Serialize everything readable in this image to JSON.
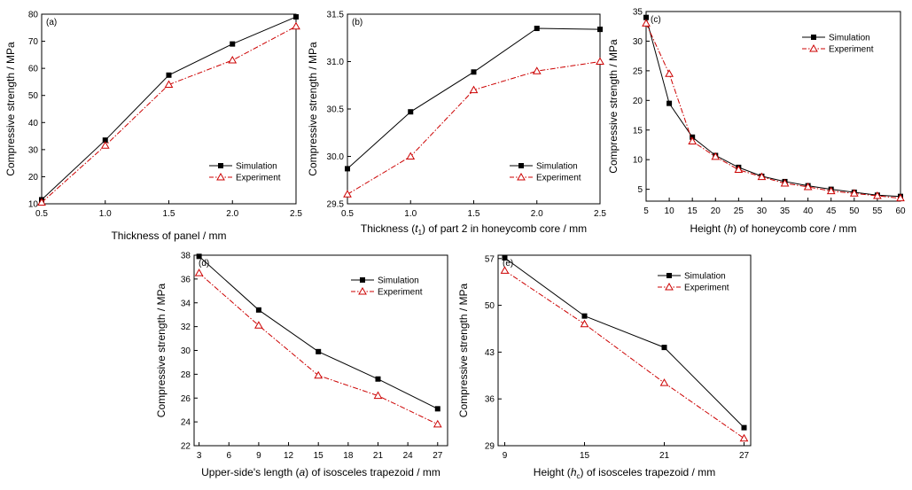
{
  "chart_data": [
    {
      "type": "line",
      "panel_label": "(a)",
      "xlabel": "Thickness of panel / mm",
      "ylabel": "Compressive strength / MPa",
      "xlim": [
        0.5,
        2.5
      ],
      "ylim": [
        10,
        80
      ],
      "xticks": [
        "0.5",
        "1.0",
        "1.5",
        "2.0",
        "2.5"
      ],
      "yticks": [
        "10",
        "20",
        "30",
        "40",
        "50",
        "60",
        "70",
        "80"
      ],
      "legend_position": "bottom-right",
      "series": [
        {
          "name": "Simulation",
          "color": "#000000",
          "marker": "square",
          "line": "solid",
          "x": [
            0.5,
            1.0,
            1.5,
            2.0,
            2.5
          ],
          "y": [
            11.5,
            33.5,
            57.5,
            69,
            79
          ]
        },
        {
          "name": "Experiment",
          "color": "#cc0000",
          "marker": "triangle",
          "line": "dashdot",
          "x": [
            0.5,
            1.0,
            1.5,
            2.0,
            2.5
          ],
          "y": [
            10.5,
            31.5,
            54,
            63,
            75.5
          ]
        }
      ]
    },
    {
      "type": "line",
      "panel_label": "(b)",
      "xlabel_parts": [
        "Thickness (",
        "t",
        "1",
        ") of part 2 in honeycomb core / mm"
      ],
      "ylabel": "Compressive strength / MPa",
      "xlim": [
        0.5,
        2.5
      ],
      "ylim": [
        29.5,
        31.5
      ],
      "xticks": [
        "0.5",
        "1.0",
        "1.5",
        "2.0",
        "2.5"
      ],
      "yticks": [
        "29.5",
        "30.0",
        "30.5",
        "31.0",
        "31.5"
      ],
      "legend_position": "bottom-right",
      "series": [
        {
          "name": "Simulation",
          "color": "#000000",
          "marker": "square",
          "line": "solid",
          "x": [
            0.5,
            1.0,
            1.5,
            2.0,
            2.5
          ],
          "y": [
            29.87,
            30.47,
            30.89,
            31.35,
            31.34
          ]
        },
        {
          "name": "Experiment",
          "color": "#cc0000",
          "marker": "triangle",
          "line": "dashdot",
          "x": [
            0.5,
            1.0,
            1.5,
            2.0,
            2.5
          ],
          "y": [
            29.6,
            30.0,
            30.7,
            30.9,
            31.0
          ]
        }
      ]
    },
    {
      "type": "line",
      "panel_label": "(c)",
      "xlabel_parts": [
        "Height (",
        "h",
        "",
        ") of honeycomb core / mm"
      ],
      "ylabel": "Compressive strength / MPa",
      "xlim": [
        5,
        60
      ],
      "ylim": [
        3,
        35
      ],
      "xticks": [
        "5",
        "10",
        "15",
        "20",
        "25",
        "30",
        "35",
        "40",
        "45",
        "50",
        "55",
        "60"
      ],
      "yticks": [
        "5",
        "10",
        "15",
        "20",
        "25",
        "30",
        "35"
      ],
      "legend_position": "top-right",
      "series": [
        {
          "name": "Simulation",
          "color": "#000000",
          "marker": "square",
          "line": "solid",
          "x": [
            5,
            10,
            15,
            20,
            25,
            30,
            35,
            40,
            45,
            50,
            55,
            60
          ],
          "y": [
            34,
            19.5,
            13.8,
            10.7,
            8.7,
            7.2,
            6.3,
            5.6,
            5.0,
            4.5,
            4.0,
            3.8
          ]
        },
        {
          "name": "Experiment",
          "color": "#cc0000",
          "marker": "triangle",
          "line": "dashdot",
          "x": [
            5,
            10,
            15,
            20,
            25,
            30,
            35,
            40,
            45,
            50,
            55,
            60
          ],
          "y": [
            33,
            24.5,
            13.1,
            10.5,
            8.3,
            7.1,
            6.0,
            5.4,
            4.7,
            4.3,
            3.9,
            3.5
          ]
        }
      ]
    },
    {
      "type": "line",
      "panel_label": "(d)",
      "xlabel_parts": [
        "Upper-side's length (",
        "a",
        "",
        ") of isosceles trapezoid / mm"
      ],
      "ylabel": "Compressive strength / MPa",
      "xlim": [
        2.5,
        28
      ],
      "ylim": [
        22,
        38
      ],
      "xticks": [
        "3",
        "6",
        "9",
        "12",
        "15",
        "18",
        "21",
        "24",
        "27"
      ],
      "yticks": [
        "22",
        "24",
        "26",
        "28",
        "30",
        "32",
        "34",
        "36",
        "38"
      ],
      "legend_position": "top-right",
      "series": [
        {
          "name": "Simulation",
          "color": "#000000",
          "marker": "square",
          "line": "solid",
          "x": [
            3,
            9,
            15,
            21,
            27
          ],
          "y": [
            37.9,
            33.4,
            29.9,
            27.6,
            25.1
          ]
        },
        {
          "name": "Experiment",
          "color": "#cc0000",
          "marker": "triangle",
          "line": "dashdot",
          "x": [
            3,
            9,
            15,
            21,
            27
          ],
          "y": [
            36.5,
            32.1,
            27.9,
            26.2,
            23.8
          ]
        }
      ]
    },
    {
      "type": "line",
      "panel_label": "(e)",
      "xlabel_parts": [
        "Height (",
        "h",
        "c",
        ") of isosceles trapezoid / mm"
      ],
      "ylabel": "Compressive strength / MPa",
      "xlim": [
        8.5,
        27.5
      ],
      "ylim": [
        29,
        57.5
      ],
      "xticks": [
        "9",
        "15",
        "21",
        "27"
      ],
      "yticks": [
        "29",
        "36",
        "43",
        "50",
        "57"
      ],
      "legend_position": "top-right",
      "series": [
        {
          "name": "Simulation",
          "color": "#000000",
          "marker": "square",
          "line": "solid",
          "x": [
            9,
            15,
            21,
            27
          ],
          "y": [
            57.1,
            48.4,
            43.7,
            31.7
          ]
        },
        {
          "name": "Experiment",
          "color": "#cc0000",
          "marker": "triangle",
          "line": "dashdot",
          "x": [
            9,
            15,
            21,
            27
          ],
          "y": [
            55.2,
            47.2,
            38.4,
            30.1
          ]
        }
      ]
    }
  ]
}
